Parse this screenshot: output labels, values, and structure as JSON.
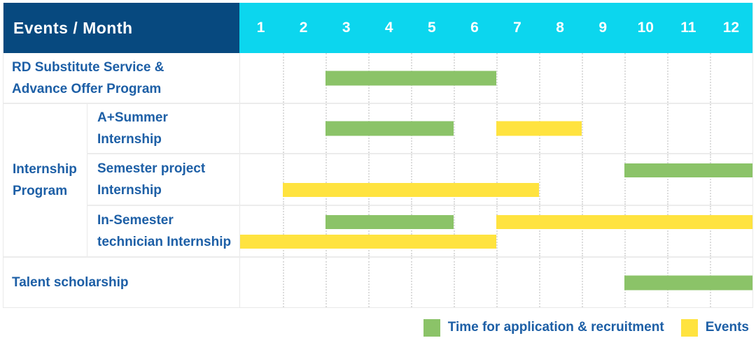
{
  "colors": {
    "header_bg": "#07497f",
    "months_bg": "#0cd6ee",
    "recruitment": "#8bc368",
    "event": "#ffe33f",
    "label_text": "#1d5fa6"
  },
  "header": {
    "label": "Events / Month",
    "months": [
      "1",
      "2",
      "3",
      "4",
      "5",
      "6",
      "7",
      "8",
      "9",
      "10",
      "11",
      "12"
    ]
  },
  "chart_data": {
    "type": "gantt",
    "x_unit": "month",
    "x_range": [
      1,
      12
    ],
    "grid": "dotted vertical month lines",
    "series_legend": {
      "recruitment": "Time for application & recruitment",
      "event": "Events"
    },
    "rows": [
      {
        "label": "RD Substitute Service &\nAdvance Offer Program",
        "group": null,
        "bars": [
          {
            "series": "recruitment",
            "start_month": 3,
            "end_month": 6,
            "lane": "single"
          }
        ]
      },
      {
        "label": "A+Summer\nInternship",
        "group": "Internship Program",
        "bars": [
          {
            "series": "recruitment",
            "start_month": 3,
            "end_month": 5,
            "lane": "single"
          },
          {
            "series": "event",
            "start_month": 7,
            "end_month": 8,
            "lane": "single"
          }
        ]
      },
      {
        "label": "Semester project\nInternship",
        "group": "Internship Program",
        "bars": [
          {
            "series": "recruitment",
            "start_month": 10,
            "end_month": 12,
            "lane": "top"
          },
          {
            "series": "event",
            "start_month": 2,
            "end_month": 7,
            "lane": "bottom"
          }
        ]
      },
      {
        "label": "In-Semester\ntechnician Internship",
        "group": "Internship Program",
        "bars": [
          {
            "series": "recruitment",
            "start_month": 3,
            "end_month": 5,
            "lane": "top"
          },
          {
            "series": "event",
            "start_month": 7,
            "end_month": 12,
            "lane": "top"
          },
          {
            "series": "event",
            "start_month": 1,
            "end_month": 6,
            "lane": "bottom"
          }
        ]
      },
      {
        "label": "Talent scholarship",
        "group": null,
        "bars": [
          {
            "series": "recruitment",
            "start_month": 10,
            "end_month": 12,
            "lane": "single"
          }
        ]
      }
    ],
    "group_label": "Internship\nProgram"
  },
  "legend": [
    {
      "series": "recruitment",
      "label": "Time for application & recruitment"
    },
    {
      "series": "event",
      "label": "Events"
    }
  ]
}
